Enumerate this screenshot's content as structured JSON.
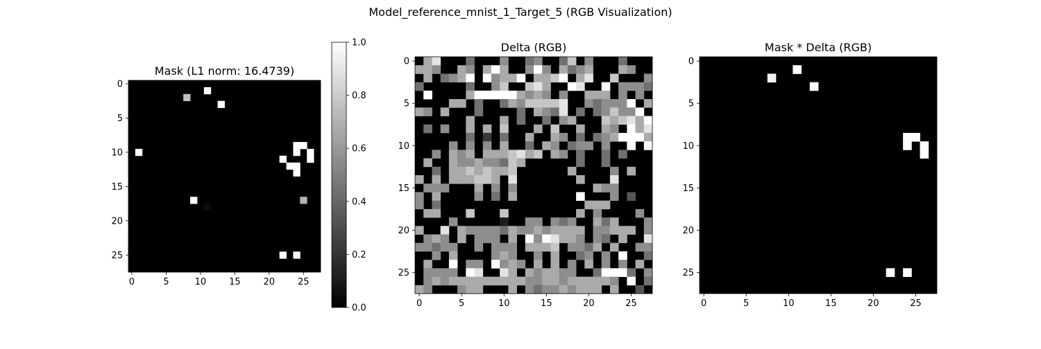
{
  "figure": {
    "title": "Model_reference_mnist_1_Target_5 (RGB Visualization)"
  },
  "chart_data": [
    {
      "type": "heatmap",
      "title": "Mask (L1 norm: 16.4739)",
      "size": [
        28,
        28
      ],
      "xticks": [
        0,
        5,
        10,
        15,
        20,
        25
      ],
      "yticks": [
        0,
        5,
        10,
        15,
        20,
        25
      ],
      "colormap": "gray",
      "colorbar": {
        "range": [
          0,
          1
        ],
        "ticks": [
          "0.0",
          "0.2",
          "0.4",
          "0.6",
          "0.8",
          "1.0"
        ]
      },
      "background": 0,
      "cells": [
        [
          1,
          11,
          1.0
        ],
        [
          2,
          8,
          0.75
        ],
        [
          3,
          13,
          1.0
        ],
        [
          9,
          24,
          1.0
        ],
        [
          9,
          25,
          1.0
        ],
        [
          10,
          1,
          1.0
        ],
        [
          10,
          24,
          1.0
        ],
        [
          10,
          26,
          1.0
        ],
        [
          11,
          22,
          1.0
        ],
        [
          11,
          26,
          1.0
        ],
        [
          12,
          23,
          1.0
        ],
        [
          12,
          24,
          1.0
        ],
        [
          13,
          24,
          1.0
        ],
        [
          17,
          9,
          1.0
        ],
        [
          17,
          25,
          0.7
        ],
        [
          18,
          11,
          0.05
        ],
        [
          25,
          22,
          1.0
        ],
        [
          25,
          24,
          1.0
        ]
      ]
    },
    {
      "type": "heatmap",
      "title": "Delta (RGB)",
      "size": [
        28,
        28
      ],
      "xticks": [
        0,
        5,
        10,
        15,
        20,
        25
      ],
      "yticks": [
        0,
        5,
        10,
        15,
        20,
        25
      ],
      "colormap": "gray",
      "rows": [
        "0680004000500450047050004000",
        "6650065069600595064560006500",
        "0604569095669066790680070005",
        "4000004005700786009800905554",
        "0900006999996565050066605050",
        "0000660400465777780054555906",
        "6506000400004065480404575590",
        "0000006000604004056000767869",
        "0405006060700060700600650968",
        "0000004020400600650404569996",
        "0000505050600406504550500909",
        "0050656066678670650400404000",
        "0600655655476000000400400000",
        "0040667676670000006000050600",
        "6060666776080000000600080000",
        "0555000605050000000006550000",
        "5060000504060000000900050300",
        "5040000000000000000066600000",
        "0660007000700000000605000050",
        "0000500000100550545006460005",
        "6008065555465565666605566605",
        "0565060555060959866505406008",
        "5545500505550666705546060055",
        "0050600005650050600450509004",
        "0600905509565060605060505060",
        "0555509800860656655004999405",
        "0565666666666556656666650904",
        "6500056600060545565666060030"
      ]
    },
    {
      "type": "heatmap",
      "title": "Mask * Delta (RGB)",
      "size": [
        28,
        28
      ],
      "xticks": [
        0,
        5,
        10,
        15,
        20,
        25
      ],
      "yticks": [
        0,
        5,
        10,
        15,
        20,
        25
      ],
      "colormap": "gray",
      "background": 0,
      "cells": [
        [
          1,
          11,
          1.0
        ],
        [
          2,
          8,
          0.95
        ],
        [
          3,
          13,
          1.0
        ],
        [
          9,
          24,
          1.0
        ],
        [
          9,
          25,
          1.0
        ],
        [
          10,
          24,
          1.0
        ],
        [
          10,
          26,
          1.0
        ],
        [
          11,
          26,
          1.0
        ],
        [
          25,
          22,
          1.0
        ],
        [
          25,
          24,
          1.0
        ]
      ]
    }
  ]
}
